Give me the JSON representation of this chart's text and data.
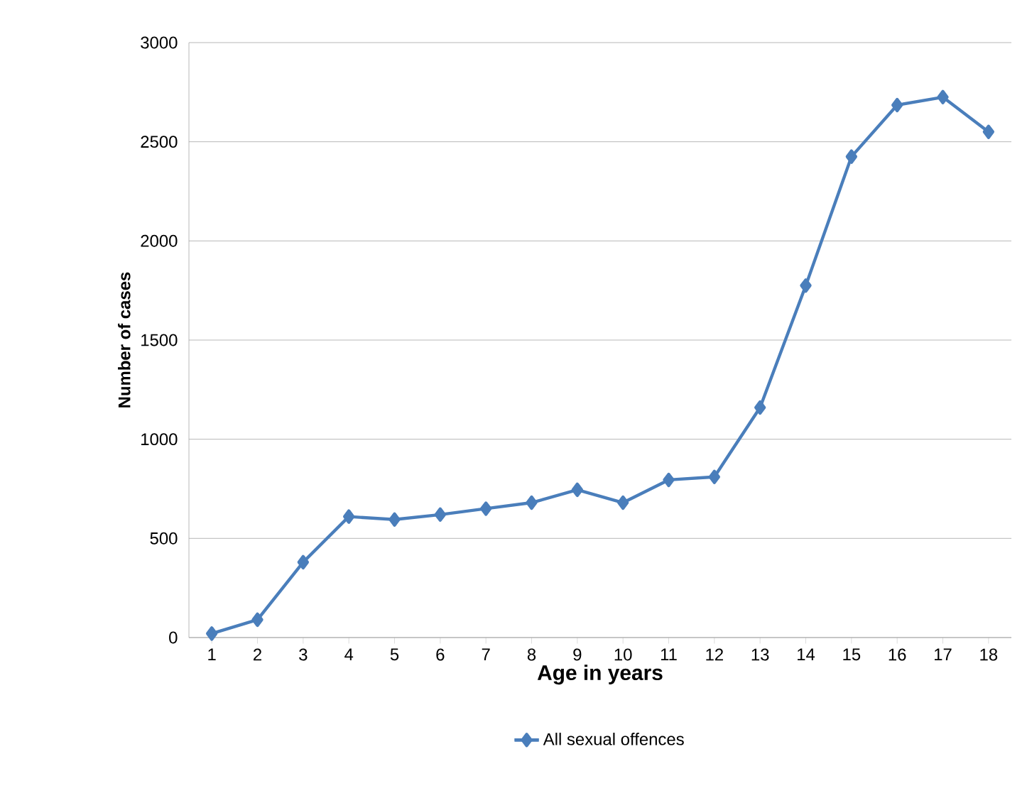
{
  "chart_data": {
    "type": "line",
    "xlabel": "Age in years",
    "ylabel": "Number of cases",
    "categories": [
      "1",
      "2",
      "3",
      "4",
      "5",
      "6",
      "7",
      "8",
      "9",
      "10",
      "11",
      "12",
      "13",
      "14",
      "15",
      "16",
      "17",
      "18"
    ],
    "series": [
      {
        "name": "All sexual offences",
        "color": "#4a7ebb",
        "values": [
          20,
          90,
          380,
          610,
          595,
          620,
          650,
          680,
          745,
          680,
          795,
          810,
          1160,
          1775,
          2425,
          2685,
          2725,
          2550
        ]
      }
    ],
    "ylim": [
      0,
      3000
    ],
    "yticks": [
      0,
      500,
      1000,
      1500,
      2000,
      2500,
      3000
    ],
    "grid": "y",
    "legend": "bottom",
    "marker": "diamond",
    "line_style": "solid"
  }
}
